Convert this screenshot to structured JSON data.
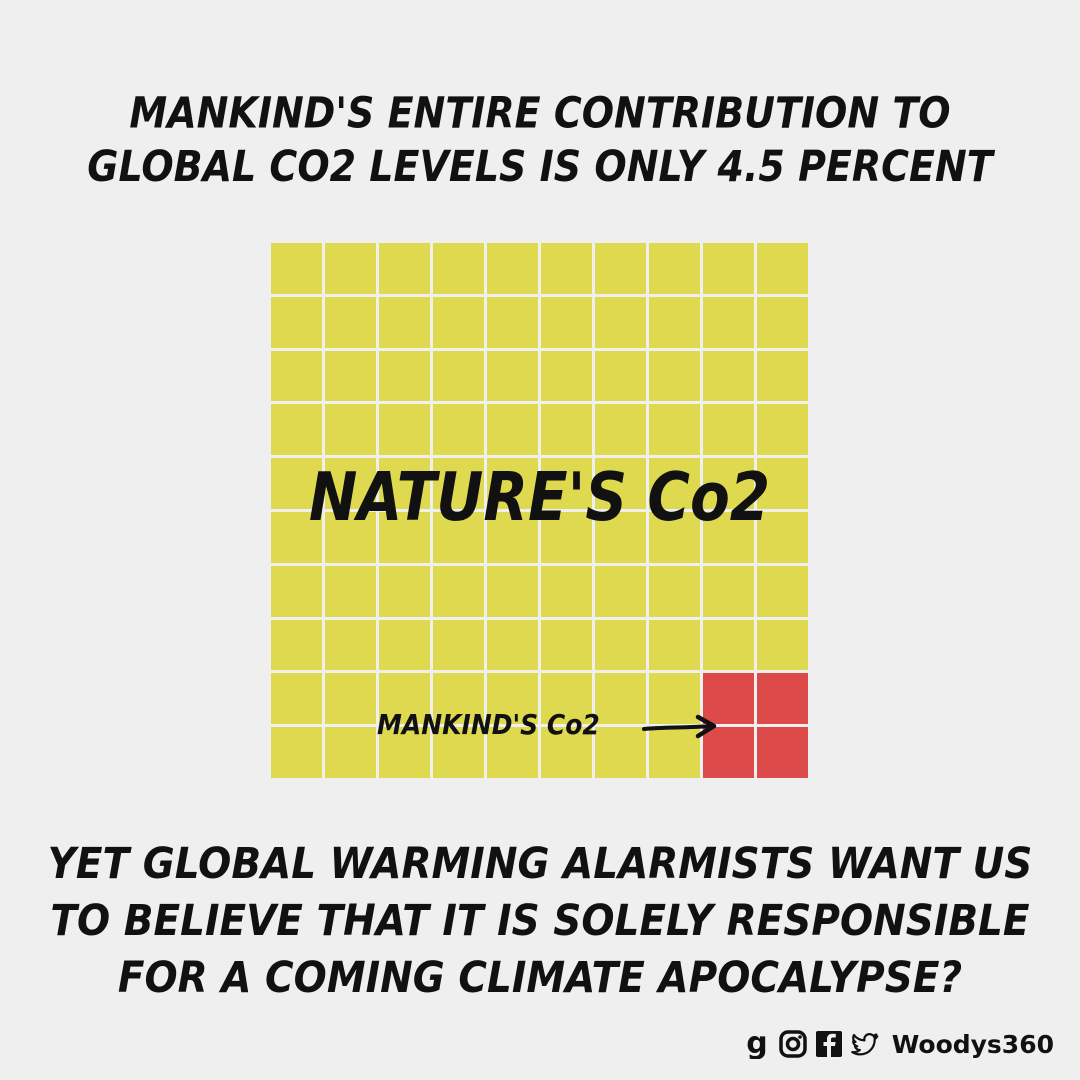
{
  "headline_top": {
    "lines": [
      "MANKIND'S ENTIRE CONTRIBUTION TO",
      "GLOBAL Co2 LEVELS IS ONLY 4.5 PERCENT"
    ]
  },
  "grid": {
    "rows": 10,
    "cols": 10,
    "highlight_cells": [
      [
        8,
        8
      ],
      [
        8,
        9
      ],
      [
        9,
        8
      ],
      [
        9,
        9
      ]
    ],
    "base_color": "#dfd94f",
    "highlight_color": "#dd4a4a",
    "nature_label": "NATURE'S Co2",
    "mankind_label": "MANKIND'S Co2"
  },
  "headline_bottom": {
    "lines": [
      "YET GLOBAL WARMING ALARMISTS WANT US",
      "TO BELIEVE THAT IT IS SOLELY RESPONSIBLE",
      "FOR A COMING CLIMATE APOCALYPSE?"
    ]
  },
  "footer": {
    "icons": [
      "gab-icon",
      "instagram-icon",
      "facebook-icon",
      "twitter-icon"
    ],
    "handle": "Woodys360"
  }
}
